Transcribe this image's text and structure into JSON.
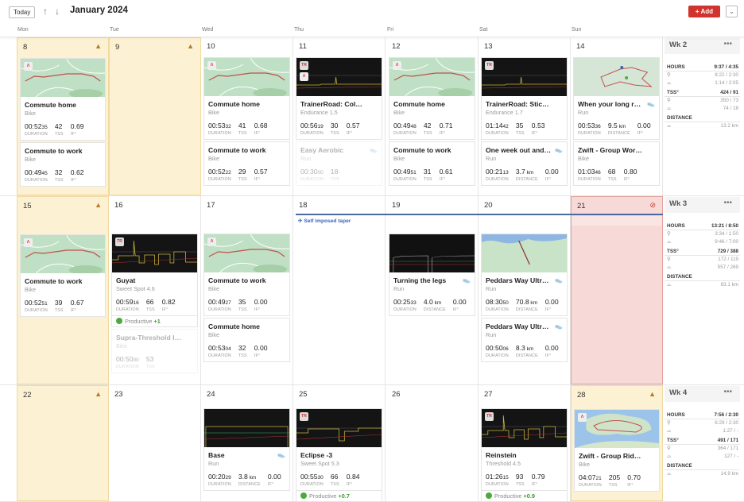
{
  "header": {
    "today_label": "Today",
    "up_icon": "arrow-up",
    "down_icon": "arrow-down",
    "month": "January 2024",
    "add_label": "+ Add",
    "dropdown_icon": "chevron-down"
  },
  "day_names": [
    "Mon",
    "Tue",
    "Wed",
    "Thu",
    "Fri",
    "Sat",
    "Sun"
  ],
  "colors": {
    "accent": "#d0342c",
    "warning_bg": "#fcf1d3",
    "rest_bg": "#f7d9d7",
    "taper": "#4a6aa0",
    "productive": "#4caa3c"
  },
  "weeks": [
    {
      "banner": false,
      "days": [
        {
          "date": "8",
          "status": "warn",
          "cards": [
            {
              "thumb": "map",
              "title": "Commute home",
              "sub": "Bike",
              "metrics": [
                {
                  "v": "00:52",
                  "s": "35",
                  "l": "DURATION"
                },
                {
                  "v": "42",
                  "s": "",
                  "l": "TSS"
                },
                {
                  "v": "0.69",
                  "s": "",
                  "l": "IF°"
                }
              ]
            },
            {
              "title": "Commute to work",
              "sub": "Bike",
              "metrics": [
                {
                  "v": "00:49",
                  "s": "45",
                  "l": "DURATION"
                },
                {
                  "v": "32",
                  "s": "",
                  "l": "TSS"
                },
                {
                  "v": "0.62",
                  "s": "",
                  "l": "IF°"
                }
              ]
            }
          ]
        },
        {
          "date": "9",
          "status": "warn",
          "cards": []
        },
        {
          "date": "10",
          "cards": [
            {
              "thumb": "map",
              "title": "Commute home",
              "sub": "Bike",
              "metrics": [
                {
                  "v": "00:53",
                  "s": "32",
                  "l": "DURATION"
                },
                {
                  "v": "41",
                  "s": "",
                  "l": "TSS"
                },
                {
                  "v": "0.68",
                  "s": "",
                  "l": "IF°"
                }
              ]
            },
            {
              "title": "Commute to work",
              "sub": "Bike",
              "metrics": [
                {
                  "v": "00:52",
                  "s": "22",
                  "l": "DURATION"
                },
                {
                  "v": "29",
                  "s": "",
                  "l": "TSS"
                },
                {
                  "v": "0.57",
                  "s": "",
                  "l": "IF°"
                }
              ]
            }
          ]
        },
        {
          "date": "11",
          "cards": [
            {
              "thumb": "chart",
              "tr": true,
              "strava": true,
              "title": "TrainerRoad: Colosseum",
              "sub": "Endurance 1.5",
              "metrics": [
                {
                  "v": "00:56",
                  "s": "19",
                  "l": "DURATION"
                },
                {
                  "v": "30",
                  "s": "",
                  "l": "TSS"
                },
                {
                  "v": "0.57",
                  "s": "",
                  "l": "IF°"
                }
              ]
            },
            {
              "dim": true,
              "shoe": true,
              "title": "Easy Aerobic",
              "sub": "Run",
              "metrics": [
                {
                  "v": "00:30",
                  "s": "00",
                  "l": "DURATION"
                },
                {
                  "v": "18",
                  "s": "",
                  "l": "TSS"
                }
              ]
            }
          ]
        },
        {
          "date": "12",
          "cards": [
            {
              "thumb": "map",
              "title": "Commute home",
              "sub": "Bike",
              "metrics": [
                {
                  "v": "00:49",
                  "s": "48",
                  "l": "DURATION"
                },
                {
                  "v": "42",
                  "s": "",
                  "l": "TSS"
                },
                {
                  "v": "0.71",
                  "s": "",
                  "l": "IF°"
                }
              ]
            },
            {
              "title": "Commute to work",
              "sub": "Bike",
              "metrics": [
                {
                  "v": "00:49",
                  "s": "51",
                  "l": "DURATION"
                },
                {
                  "v": "31",
                  "s": "",
                  "l": "TSS"
                },
                {
                  "v": "0.61",
                  "s": "",
                  "l": "IF°"
                }
              ]
            }
          ]
        },
        {
          "date": "13",
          "cards": [
            {
              "thumb": "chart",
              "tr": true,
              "title": "TrainerRoad: Stickney",
              "sub": "Endurance 1.7",
              "metrics": [
                {
                  "v": "01:14",
                  "s": "42",
                  "l": "DURATION"
                },
                {
                  "v": "35",
                  "s": "",
                  "l": "TSS"
                },
                {
                  "v": "0.53",
                  "s": "",
                  "l": "IF°"
                }
              ]
            },
            {
              "shoe": true,
              "title": "One week out and ...",
              "sub": "Run",
              "metrics": [
                {
                  "v": "00:21",
                  "s": "13",
                  "l": "DURATION"
                },
                {
                  "v": "3.7",
                  "s": " km",
                  "l": "DISTANCE"
                },
                {
                  "v": "0.00",
                  "s": "",
                  "l": "IF°"
                }
              ]
            }
          ]
        },
        {
          "date": "14",
          "cards": [
            {
              "thumb": "loop",
              "shoe": true,
              "title": "When your long run...",
              "sub": "Run",
              "metrics": [
                {
                  "v": "00:53",
                  "s": "36",
                  "l": "DURATION"
                },
                {
                  "v": "9.5",
                  "s": " km",
                  "l": "DISTANCE"
                },
                {
                  "v": "0.00",
                  "s": "",
                  "l": "IF°"
                }
              ]
            },
            {
              "title": "Zwift - Group Workout:...",
              "sub": "Bike",
              "metrics": [
                {
                  "v": "01:03",
                  "s": "46",
                  "l": "DURATION"
                },
                {
                  "v": "68",
                  "s": "",
                  "l": "TSS"
                },
                {
                  "v": "0.80",
                  "s": "",
                  "l": "IF°"
                }
              ]
            }
          ]
        }
      ],
      "summary": {
        "week": "Wk 2",
        "hours": "9:37 / 4:35",
        "hours_bike": "8:22 / 2:30",
        "hours_run": "1:14 / 2:05",
        "tss": "424 / 91",
        "tss_bike": "350 / 73",
        "tss_run": "74 / 18",
        "distance_run": "13.2 km"
      }
    },
    {
      "banner": true,
      "days": [
        {
          "date": "15",
          "status": "warn",
          "cards": [
            {
              "thumb": "map",
              "title": "Commute to work",
              "sub": "Bike",
              "metrics": [
                {
                  "v": "00:52",
                  "s": "51",
                  "l": "DURATION"
                },
                {
                  "v": "39",
                  "s": "",
                  "l": "TSS"
                },
                {
                  "v": "0.67",
                  "s": "",
                  "l": "IF°"
                }
              ]
            }
          ]
        },
        {
          "date": "16",
          "cards": [
            {
              "thumb": "chart2",
              "tr": true,
              "title": "Guyat",
              "sub": "Sweet Spot 4.6",
              "metrics": [
                {
                  "v": "00:59",
                  "s": "16",
                  "l": "DURATION"
                },
                {
                  "v": "66",
                  "s": "",
                  "l": "TSS"
                },
                {
                  "v": "0.82",
                  "s": "",
                  "l": "IF°"
                }
              ],
              "productive": "+1"
            },
            {
              "dim": true,
              "title": "Supra-Threshold Int...",
              "sub": "Bike",
              "metrics": [
                {
                  "v": "00:50",
                  "s": "00",
                  "l": "DURATION"
                },
                {
                  "v": "53",
                  "s": "",
                  "l": "TSS"
                }
              ]
            }
          ]
        },
        {
          "date": "17",
          "cards": [
            {
              "thumb": "map",
              "title": "Commute to work",
              "sub": "Bike",
              "metrics": [
                {
                  "v": "00:49",
                  "s": "27",
                  "l": "DURATION"
                },
                {
                  "v": "35",
                  "s": "",
                  "l": "TSS"
                },
                {
                  "v": "0.00",
                  "s": "",
                  "l": "IF°"
                }
              ]
            },
            {
              "title": "Commute home",
              "sub": "Bike",
              "metrics": [
                {
                  "v": "00:53",
                  "s": "04",
                  "l": "DURATION"
                },
                {
                  "v": "32",
                  "s": "",
                  "l": "TSS"
                },
                {
                  "v": "0.00",
                  "s": "",
                  "l": "IF°"
                }
              ]
            }
          ]
        },
        {
          "date": "18",
          "cards": []
        },
        {
          "date": "19",
          "cards": [
            {
              "thumb": "dark",
              "shoe": true,
              "title": "Turning the legs",
              "sub": "Run",
              "metrics": [
                {
                  "v": "00:25",
                  "s": "33",
                  "l": "DURATION"
                },
                {
                  "v": "4.0",
                  "s": " km",
                  "l": "DISTANCE"
                },
                {
                  "v": "0.00",
                  "s": "",
                  "l": "IF°"
                }
              ]
            }
          ]
        },
        {
          "date": "20",
          "cards": [
            {
              "thumb": "coast",
              "shoe": true,
              "title": "Peddars Way Ultra ...",
              "sub": "Run",
              "metrics": [
                {
                  "v": "08:30",
                  "s": "50",
                  "l": "DURATION"
                },
                {
                  "v": "70.8",
                  "s": " km",
                  "l": "DISTANCE"
                },
                {
                  "v": "0.00",
                  "s": "",
                  "l": "IF°"
                }
              ]
            },
            {
              "shoe": true,
              "title": "Peddars Way Ultra ...",
              "sub": "Run",
              "metrics": [
                {
                  "v": "00:50",
                  "s": "06",
                  "l": "DURATION"
                },
                {
                  "v": "8.3",
                  "s": " km",
                  "l": "DISTANCE"
                },
                {
                  "v": "0.00",
                  "s": "",
                  "l": "IF°"
                }
              ]
            }
          ]
        },
        {
          "date": "21",
          "status": "rest",
          "cards": []
        }
      ],
      "event": {
        "label": "Self imposed taper",
        "icon": "plane-icon"
      },
      "summary": {
        "week": "Wk 3",
        "hours": "13:21 / 8:50",
        "hours_bike": "3:34 / 1:50",
        "hours_run": "9:46 / 7:00",
        "tss": "729 / 388",
        "tss_bike": "172 / 119",
        "tss_run": "557 / 269",
        "distance_run": "83.1 km"
      }
    },
    {
      "banner": false,
      "days": [
        {
          "date": "22",
          "status": "warn",
          "cards": []
        },
        {
          "date": "23",
          "cards": []
        },
        {
          "date": "24",
          "cards": [
            {
              "thumb": "dark2",
              "shoe": true,
              "title": "Base",
              "sub": "Run",
              "metrics": [
                {
                  "v": "00:20",
                  "s": "29",
                  "l": "DURATION"
                },
                {
                  "v": "3.8",
                  "s": " km",
                  "l": "DISTANCE"
                },
                {
                  "v": "0.00",
                  "s": "",
                  "l": "IF°"
                }
              ]
            }
          ]
        },
        {
          "date": "25",
          "cards": [
            {
              "thumb": "chart3",
              "tr": true,
              "title": "Eclipse -3",
              "sub": "Sweet Spot 5.3",
              "metrics": [
                {
                  "v": "00:55",
                  "s": "30",
                  "l": "DURATION"
                },
                {
                  "v": "66",
                  "s": "",
                  "l": "TSS"
                },
                {
                  "v": "0.84",
                  "s": "",
                  "l": "IF°"
                }
              ],
              "productive": "+0.7"
            }
          ]
        },
        {
          "date": "26",
          "cards": []
        },
        {
          "date": "27",
          "cards": [
            {
              "thumb": "chart2",
              "tr": true,
              "title": "Reinstein",
              "sub": "Threshold 4.5",
              "metrics": [
                {
                  "v": "01:26",
                  "s": "15",
                  "l": "DURATION"
                },
                {
                  "v": "93",
                  "s": "",
                  "l": "TSS"
                },
                {
                  "v": "0.79",
                  "s": "",
                  "l": "IF°"
                }
              ],
              "productive": "+0.9"
            }
          ]
        },
        {
          "date": "28",
          "status": "warn",
          "cards": [
            {
              "thumb": "island",
              "strava": true,
              "title": "Zwift - Group Ride: EV...",
              "sub": "Bike",
              "metrics": [
                {
                  "v": "04:07",
                  "s": "21",
                  "l": "DURATION"
                },
                {
                  "v": "205",
                  "s": "",
                  "l": "TSS"
                },
                {
                  "v": "0.70",
                  "s": "",
                  "l": "IF°"
                }
              ]
            }
          ]
        }
      ],
      "summary": {
        "week": "Wk 4",
        "hours": "7:56 / 2:30",
        "hours_bike": "6:29 / 2:30",
        "hours_run": "1:27 / -",
        "tss": "491 / 171",
        "tss_bike": "364 / 171",
        "tss_run": "127 / -",
        "distance_run": "14.9 km"
      }
    }
  ],
  "labels": {
    "hours": "HOURS",
    "tss": "TSS°",
    "distance": "DISTANCE",
    "productive": "Productive",
    "tr_badge": "TR",
    "more": "•••"
  }
}
